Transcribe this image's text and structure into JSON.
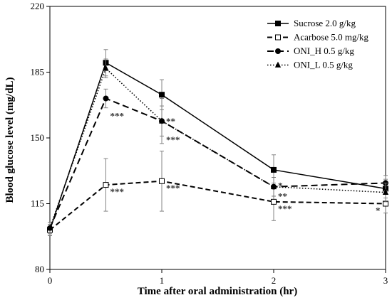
{
  "chart_data": {
    "type": "line",
    "title": "",
    "xlabel": "Time after oral administration  (hr)",
    "ylabel": "Blood glucose level (mg/dL)",
    "xlim": [
      0,
      3
    ],
    "ylim": [
      80,
      220
    ],
    "x_ticks": [
      0,
      1,
      2,
      3
    ],
    "y_ticks": [
      80,
      115,
      150,
      185,
      220
    ],
    "grid": false,
    "legend_position": "top-right",
    "x": [
      0,
      0.5,
      1,
      2,
      3
    ],
    "series": [
      {
        "name": "Sucrose 2.0 g/kg",
        "marker": "filled-square",
        "dash": "solid",
        "values": [
          101,
          190,
          173,
          133,
          123
        ],
        "errors": [
          3,
          7,
          8,
          8,
          5
        ],
        "significance": [
          "",
          "",
          "",
          "",
          ""
        ]
      },
      {
        "name": "Acarbose 5.0 mg/kg",
        "marker": "open-square",
        "dash": "dashed",
        "values": [
          101,
          125,
          127,
          116,
          115
        ],
        "errors": [
          3,
          14,
          16,
          10,
          5
        ],
        "significance": [
          "",
          "***",
          "***",
          "***",
          "*"
        ]
      },
      {
        "name": "ONI_H 0.5 g/kg",
        "marker": "filled-circle",
        "dash": "long-dash",
        "values": [
          102,
          171,
          159,
          124,
          126
        ],
        "errors": [
          3,
          5,
          12,
          5,
          4
        ],
        "significance": [
          "",
          "***",
          "**",
          "**",
          ""
        ]
      },
      {
        "name": "ONI_L 0.5 g/kg",
        "marker": "filled-triangle",
        "dash": "dotted",
        "values": [
          102,
          187,
          159,
          124,
          121
        ],
        "errors": [
          3,
          5,
          8,
          5,
          5
        ],
        "significance": [
          "",
          "",
          "***",
          "*",
          ""
        ]
      }
    ]
  }
}
